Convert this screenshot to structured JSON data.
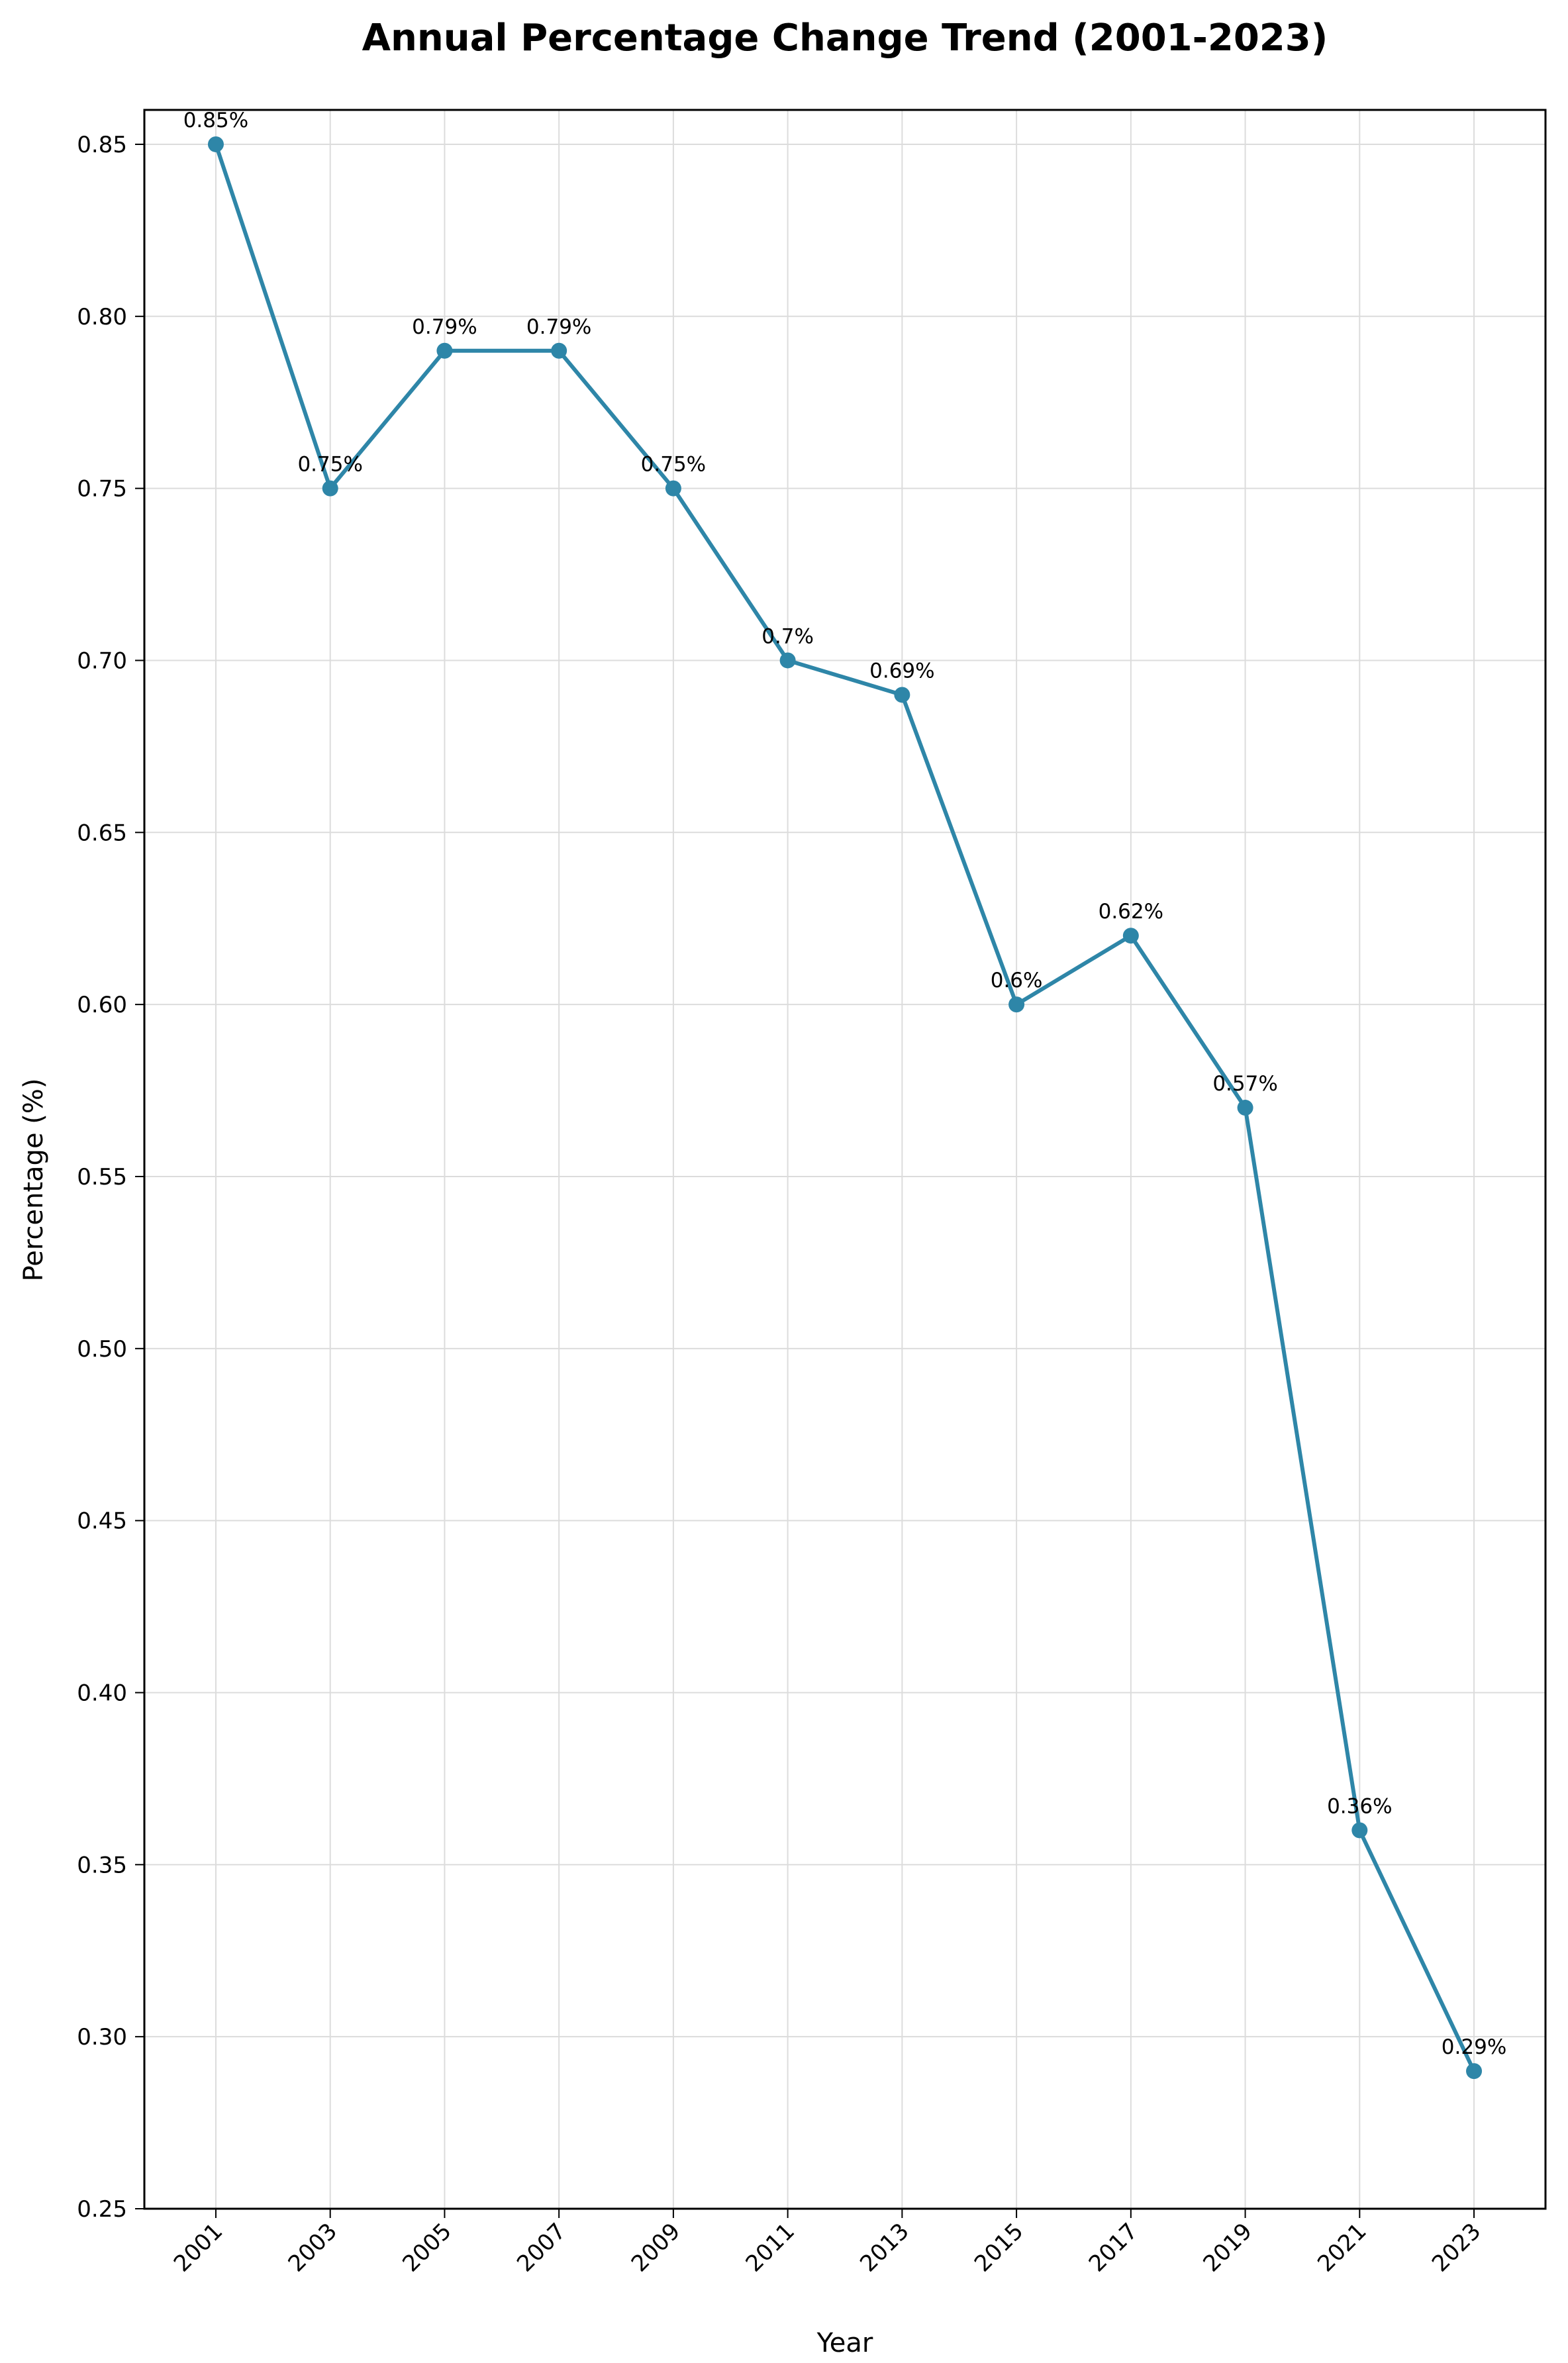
{
  "chart_data": {
    "type": "line",
    "title": "Annual Percentage Change Trend (2001-2023)",
    "xlabel": "Year",
    "ylabel": "Percentage (%)",
    "x": [
      2001,
      2003,
      2005,
      2007,
      2009,
      2011,
      2013,
      2015,
      2017,
      2019,
      2021,
      2023
    ],
    "series": [
      {
        "values": [
          0.85,
          0.75,
          0.79,
          0.79,
          0.75,
          0.7,
          0.69,
          0.6,
          0.62,
          0.57,
          0.36,
          0.29
        ],
        "labels": [
          "0.85%",
          "0.75%",
          "0.79%",
          "0.79%",
          "0.75%",
          "0.7%",
          "0.69%",
          "0.6%",
          "0.62%",
          "0.57%",
          "0.36%",
          "0.29%"
        ],
        "color": "#2e86a8"
      }
    ],
    "xlim": [
      1999.75,
      2024.25
    ],
    "ylim": [
      0.25,
      0.86
    ],
    "xticks": [
      "2001",
      "2003",
      "2005",
      "2007",
      "2009",
      "2011",
      "2013",
      "2015",
      "2017",
      "2019",
      "2021",
      "2023"
    ],
    "yticks": [
      "0.25",
      "0.30",
      "0.35",
      "0.40",
      "0.45",
      "0.50",
      "0.55",
      "0.60",
      "0.65",
      "0.70",
      "0.75",
      "0.80",
      "0.85"
    ],
    "grid": true
  }
}
